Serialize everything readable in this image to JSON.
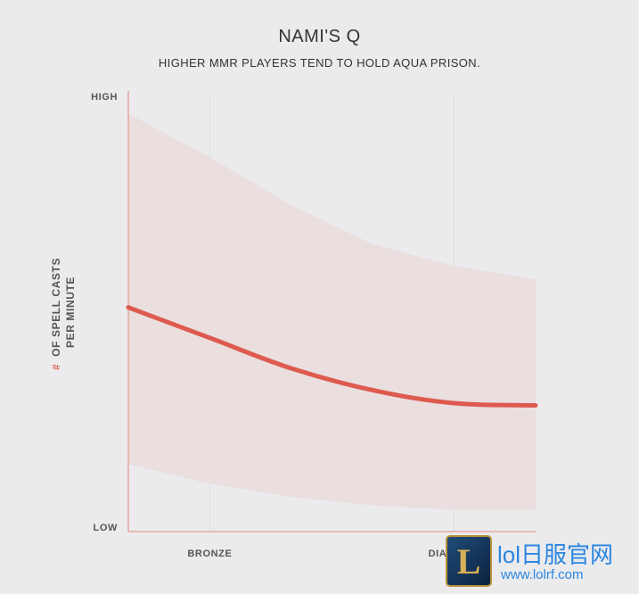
{
  "chart_data": {
    "type": "line",
    "title": "NAMI'S Q",
    "subtitle": "HIGHER MMR PLAYERS TEND TO HOLD AQUA PRISON.",
    "ylabel_hash": "#",
    "ylabel_line1": "OF SPELL CASTS",
    "ylabel_line2": "PER MINUTE",
    "y_tick_high": "HIGH",
    "y_tick_low": "LOW",
    "x_ticks": [
      "BRONZE",
      "DIA"
    ],
    "ylim": [
      0,
      100
    ],
    "x": [
      0,
      1,
      2,
      3,
      4,
      5
    ],
    "series": [
      {
        "values": [
          51.5,
          44.5,
          37.5,
          32.5,
          29.5,
          29
        ]
      }
    ],
    "band_upper": [
      96,
      86,
      75,
      66,
      61,
      58
    ],
    "band_lower": [
      15.5,
      11,
      8,
      6,
      5,
      5
    ],
    "grid": true,
    "colors": {
      "line": "#de5a4e",
      "band": "#eadedf",
      "axis": "#e0867c",
      "grid": "#dddddf",
      "label": "#555555",
      "accent": "#e2685d"
    }
  },
  "watermark": {
    "logo_letter": "L",
    "name": "lol日服官网",
    "url": "www.lolrf.com"
  }
}
